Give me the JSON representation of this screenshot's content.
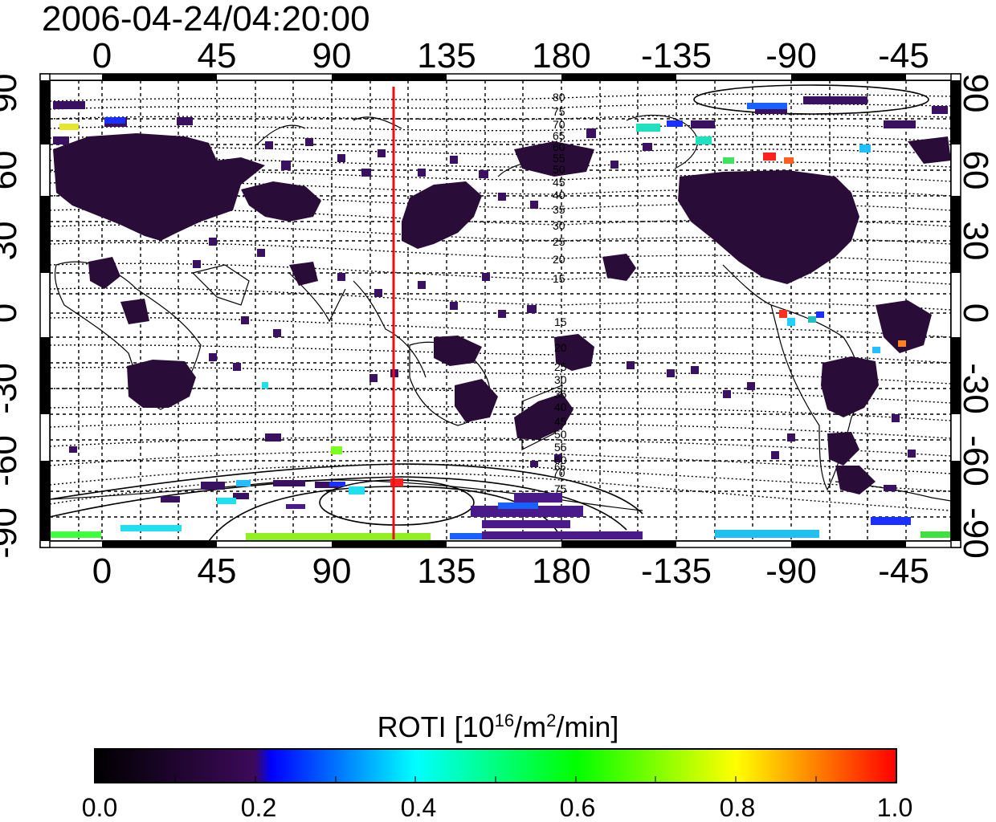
{
  "title": "2006-04-24/04:20:00",
  "top_ticks": [
    "0",
    "45",
    "90",
    "135",
    "180",
    "-135",
    "-90",
    "-45"
  ],
  "bottom_ticks": [
    "0",
    "45",
    "90",
    "135",
    "180",
    "-135",
    "-90",
    "-45"
  ],
  "left_ticks": [
    "90",
    "60",
    "30",
    "0",
    "-30",
    "-60",
    "-90"
  ],
  "right_ticks": [
    "90",
    "60",
    "30",
    "0",
    "-30",
    "-60",
    "-90"
  ],
  "contour_labels_north": [
    "80",
    "75",
    "70",
    "65",
    "60",
    "55",
    "50",
    "45",
    "40",
    "35",
    "30",
    "25",
    "20",
    "15"
  ],
  "contour_labels_south": [
    "15",
    "20",
    "25",
    "30",
    "35",
    "40",
    "45",
    "50",
    "55",
    "60",
    "65",
    "70",
    "75"
  ],
  "meridian_line": {
    "longitude": 115,
    "color": "#e81010"
  },
  "colorbar": {
    "title_main": "ROTI  [10",
    "title_sup1": "16",
    "title_mid": "/m",
    "title_sup2": "2",
    "title_end": "/min]",
    "ticks": [
      "0.0",
      "0.2",
      "0.4",
      "0.6",
      "0.8",
      "1.0"
    ],
    "colors": [
      "#000000",
      "#3c0a5a",
      "#0000ff",
      "#00ffff",
      "#00ff00",
      "#ffff00",
      "#ff0000"
    ]
  },
  "colors": {
    "data_dark": "#2a0c38",
    "data_purple": "#4b1a8a",
    "frame": "#000000"
  }
}
